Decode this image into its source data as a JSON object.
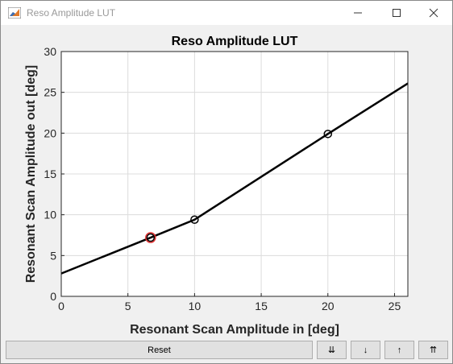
{
  "window": {
    "title": "Reso Amplitude LUT"
  },
  "icons": {
    "app": "matlab-icon",
    "minimize": "minimize-icon",
    "maximize": "maximize-icon",
    "close": "close-icon"
  },
  "chart_data": {
    "type": "line",
    "title": "Reso Amplitude LUT",
    "xlabel": "Resonant Scan Amplitude in [deg]",
    "ylabel": "Resonant Scan Amplitude out [deg]",
    "xlim": [
      0,
      26
    ],
    "ylim": [
      0,
      30
    ],
    "xticks": [
      0,
      5,
      10,
      15,
      20,
      25
    ],
    "yticks": [
      0,
      5,
      10,
      15,
      20,
      25,
      30
    ],
    "grid": true,
    "line_color": "#000000",
    "series": [
      {
        "x": [
          0,
          6.7,
          10,
          20,
          26
        ],
        "y": [
          2.8,
          7.2,
          9.4,
          19.9,
          26.1
        ]
      }
    ],
    "markers": [
      {
        "x": 10,
        "y": 9.4
      },
      {
        "x": 20,
        "y": 19.9
      }
    ],
    "highlight": {
      "x": 6.7,
      "y": 7.2,
      "color": "#e03030"
    }
  },
  "controls": {
    "reset": "Reset",
    "down_double": "⇊",
    "down": "↓",
    "up": "↑",
    "up_double": "⇈"
  }
}
